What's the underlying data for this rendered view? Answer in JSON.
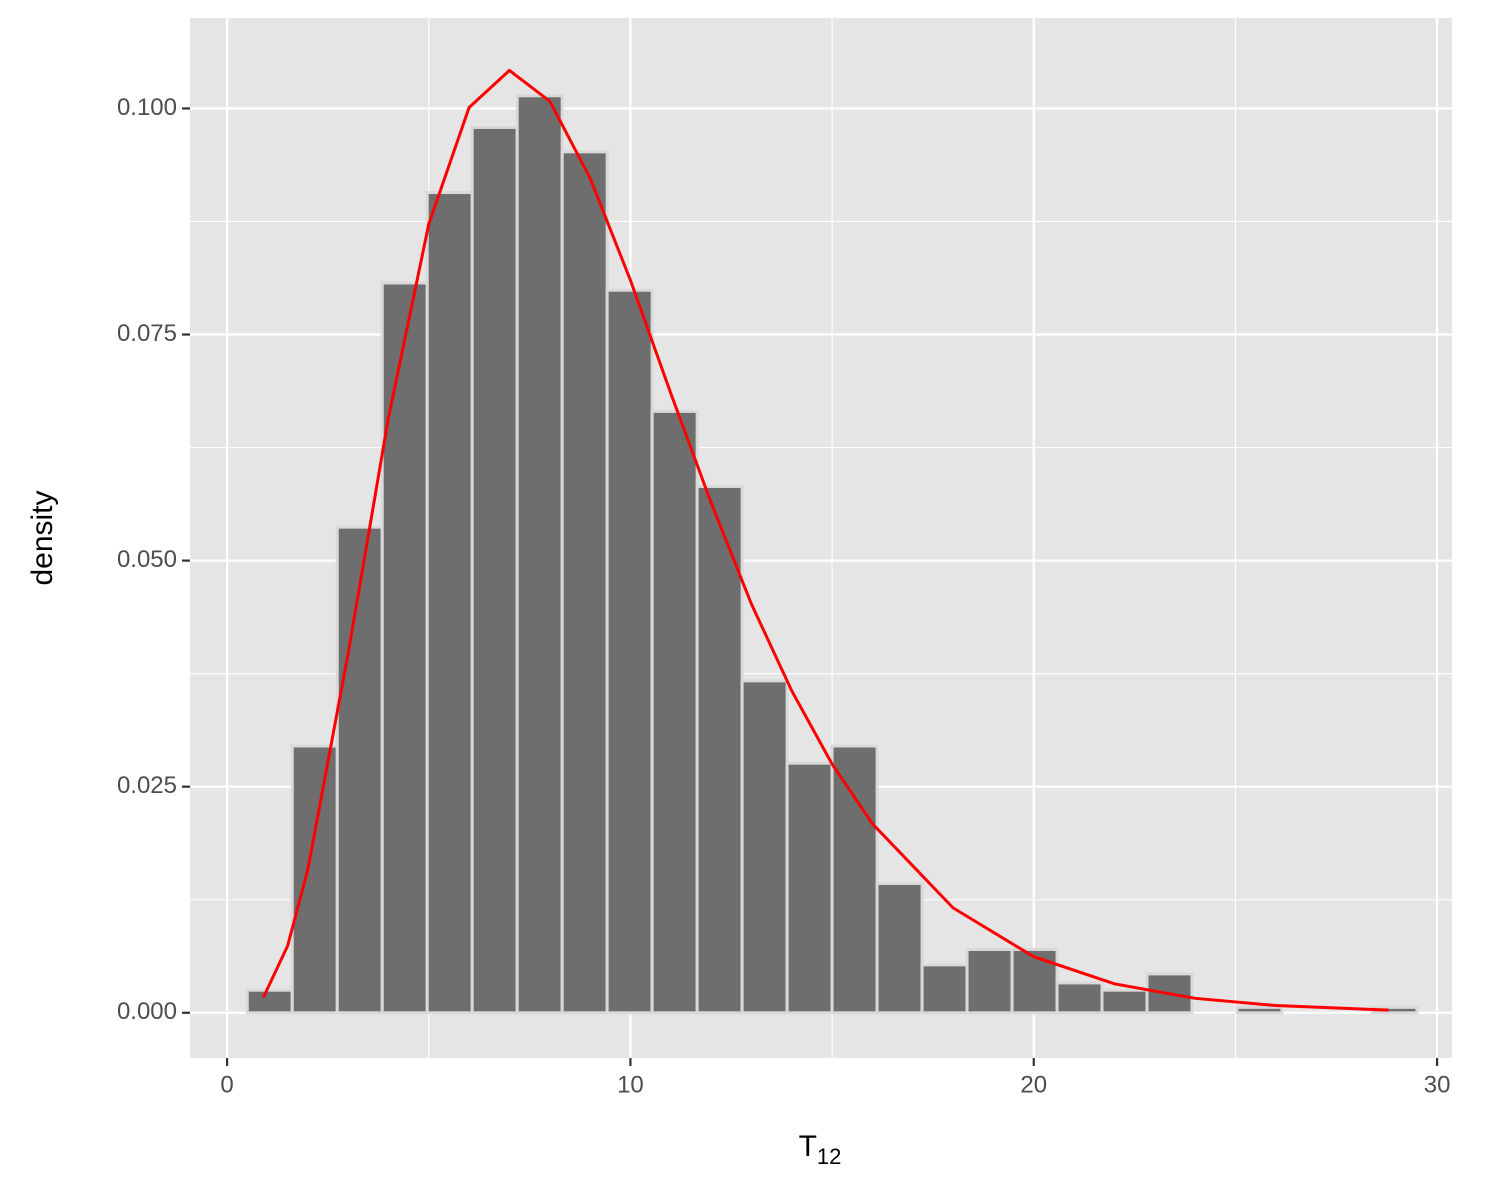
{
  "chart_data": {
    "type": "histogram",
    "bins": [
      0.5,
      1.615,
      2.731,
      3.846,
      4.962,
      6.077,
      7.192,
      8.308,
      9.423,
      10.538,
      11.654,
      12.769,
      13.885,
      15.0,
      16.115,
      17.231,
      18.346,
      19.462,
      20.577,
      21.692,
      22.808,
      23.923,
      25.038,
      26.154,
      27.269,
      28.385,
      29.5
    ],
    "values": [
      0.0025,
      0.0295,
      0.0537,
      0.0807,
      0.0907,
      0.0979,
      0.1014,
      0.0952,
      0.0799,
      0.0665,
      0.0582,
      0.0367,
      0.0276,
      0.0295,
      0.0143,
      0.0053,
      0.007,
      0.007,
      0.0033,
      0.0025,
      0.0043,
      0,
      0.0006,
      0,
      0,
      0.0006
    ],
    "color": "#6e6e6e",
    "edge_color": "#d9d9d9",
    "curve": {
      "type": "line",
      "color": "#ff0000",
      "x": [
        0.9,
        1.5,
        2,
        3,
        4,
        5,
        6,
        7,
        8,
        9,
        10,
        11,
        12,
        13,
        14,
        15,
        16,
        18,
        20,
        22,
        24,
        26,
        28.8
      ],
      "values": [
        0.0017,
        0.0074,
        0.0158,
        0.0397,
        0.0658,
        0.0872,
        0.1001,
        0.1042,
        0.1008,
        0.0923,
        0.081,
        0.0685,
        0.0564,
        0.0452,
        0.0356,
        0.0275,
        0.0209,
        0.0116,
        0.0062,
        0.0032,
        0.0016,
        0.0008,
        0.0003
      ]
    },
    "xlabel": "T",
    "xlabel_subscript": "12",
    "ylabel": "density",
    "xlim": [
      -0.92,
      30.37
    ],
    "ylim": [
      -0.005,
      0.11
    ],
    "xticks": [
      0,
      10,
      20,
      30
    ],
    "yticks": [
      {
        "value": 0,
        "label": "0.000"
      },
      {
        "value": 0.025,
        "label": "0.025"
      },
      {
        "value": 0.05,
        "label": "0.050"
      },
      {
        "value": 0.075,
        "label": "0.075"
      },
      {
        "value": 0.1,
        "label": "0.100"
      }
    ],
    "grid": true
  }
}
